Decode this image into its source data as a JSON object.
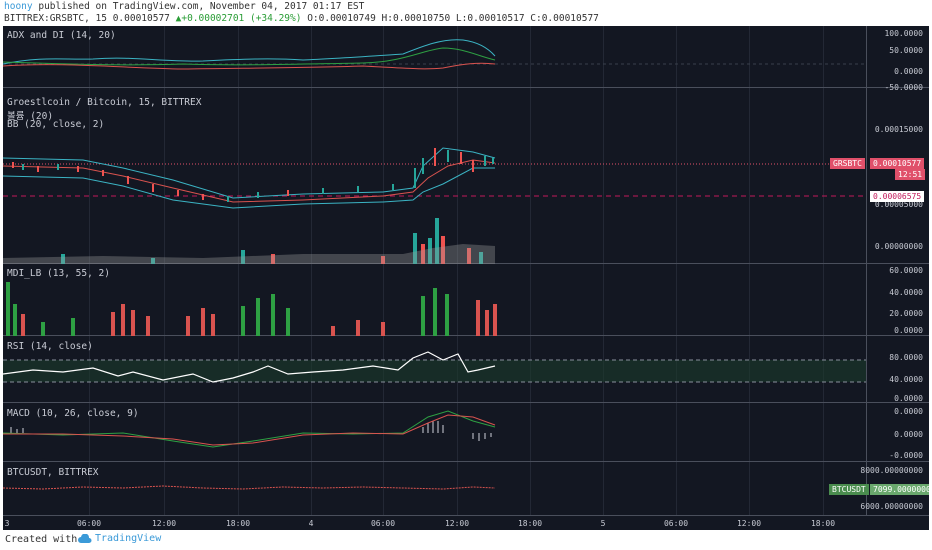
{
  "header": {
    "author": "hoony",
    "published_text": "published on TradingView.com, November 04, 2017 01:17 EST",
    "symbol": "BITTREX:GRSBTC, 15",
    "last": "0.00010577",
    "up_arrow": "▲",
    "change": "+0.00002701 (+34.29%)",
    "ohlc": "O:0.00010749 H:0.00010750 L:0.00010517 C:0.00010577"
  },
  "panes": {
    "adx": {
      "label": "ADX and DI (14, 20)",
      "ticks": [
        "100.0000",
        "50.0000",
        "0.0000",
        "-50.0000"
      ]
    },
    "price": {
      "title": "Groestlcoin / Bitcoin, 15, BITTREX",
      "vol_label": "볼륨 (20)",
      "bb_label": "BB (20, close, 2)",
      "ticks": [
        "0.00015000",
        "0.00005000",
        "0.00000000"
      ],
      "price_badge": "GRSBTC",
      "price_value": "0.00010577",
      "countdown": "12:51",
      "level_value": "0.00006575"
    },
    "mdi": {
      "label": "MDI_LB (13, 55, 2)",
      "ticks": [
        "60.0000",
        "40.0000",
        "20.0000",
        "0.0000"
      ]
    },
    "rsi": {
      "label": "RSI (14, close)",
      "ticks": [
        "80.0000",
        "40.0000",
        "0.0000"
      ]
    },
    "macd": {
      "label": "MACD (10, 26, close, 9)",
      "ticks": [
        "0.0000",
        "0.0000",
        "-0.0000"
      ]
    },
    "btc": {
      "label": "BTCUSDT, BITTREX",
      "ticks": [
        "8000.00000000",
        "6000.00000000"
      ],
      "badge": "BTCUSDT",
      "badge_value": "7099.00000000"
    }
  },
  "time_axis": [
    "3",
    "06:00",
    "12:00",
    "18:00",
    "4",
    "06:00",
    "12:00",
    "18:00",
    "5",
    "06:00",
    "12:00",
    "18:00"
  ],
  "footer": {
    "created": "Created with",
    "brand": "TradingView"
  },
  "colors": {
    "background": "#131722",
    "up": "#26a69a",
    "down": "#ef5350",
    "accent": "#e0506a"
  }
}
